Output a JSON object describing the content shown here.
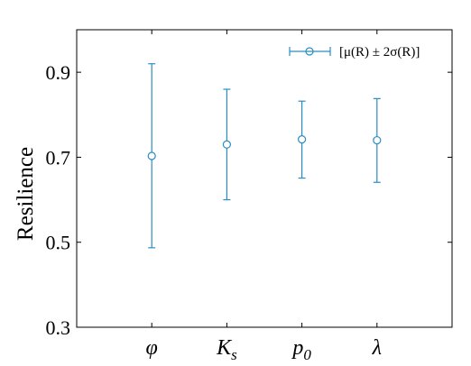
{
  "chart_data": {
    "type": "scatter",
    "categories": [
      "φ",
      "K",
      "p",
      "λ"
    ],
    "category_subscripts": [
      "",
      "s",
      "0",
      ""
    ],
    "mean": [
      0.703,
      0.73,
      0.742,
      0.74
    ],
    "lower": [
      0.487,
      0.6,
      0.651,
      0.641
    ],
    "upper": [
      0.92,
      0.86,
      0.832,
      0.838
    ],
    "ylabel": "Resilience",
    "ylim": [
      0.3,
      1.0
    ],
    "yticks": [
      0.3,
      0.5,
      0.7,
      0.9
    ],
    "ytick_labels": [
      "0.3",
      "0.5",
      "0.7",
      "0.9"
    ],
    "legend": {
      "label": "[μ(R) ± 2σ(R)]",
      "placement": "top-right"
    },
    "grid": false,
    "color": "#2b8cc4"
  }
}
